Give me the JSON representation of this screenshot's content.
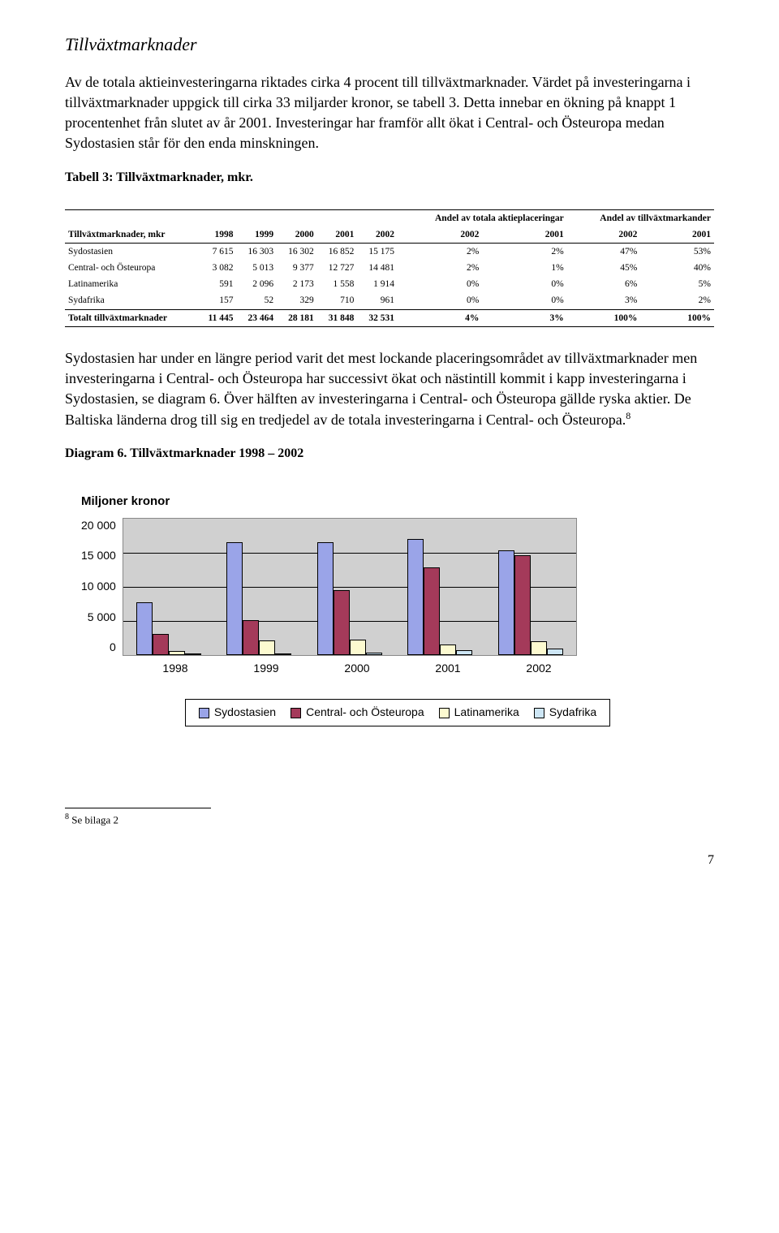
{
  "section_title": "Tillväxtmarknader",
  "para1": "Av de totala aktieinvesteringarna riktades cirka 4 procent till tillväxtmarknader. Värdet på investeringarna i tillväxtmarknader uppgick till cirka 33 miljarder kronor, se tabell 3. Detta innebar en ökning på knappt 1 procentenhet från slutet av år 2001. Investeringar har framför allt ökat i Central- och Östeuropa medan Sydostasien står för den enda minskningen.",
  "table_caption": "Tabell 3: Tillväxtmarknader, mkr.",
  "table": {
    "super_headers": [
      "Andel av totala aktieplaceringar",
      "Andel av tillväxtmarkander"
    ],
    "col_headers": [
      "Tillväxtmarknader, mkr",
      "1998",
      "1999",
      "2000",
      "2001",
      "2002",
      "2002",
      "2001",
      "2002",
      "2001"
    ],
    "rows": [
      [
        "Sydostasien",
        "7 615",
        "16 303",
        "16 302",
        "16 852",
        "15 175",
        "2%",
        "2%",
        "47%",
        "53%"
      ],
      [
        "Central- och Östeuropa",
        "3 082",
        "5 013",
        "9 377",
        "12 727",
        "14 481",
        "2%",
        "1%",
        "45%",
        "40%"
      ],
      [
        "Latinamerika",
        "591",
        "2 096",
        "2 173",
        "1 558",
        "1 914",
        "0%",
        "0%",
        "6%",
        "5%"
      ],
      [
        "Sydafrika",
        "157",
        "52",
        "329",
        "710",
        "961",
        "0%",
        "0%",
        "3%",
        "2%"
      ]
    ],
    "total_row": [
      "Totalt tillväxtmarknader",
      "11 445",
      "23 464",
      "28 181",
      "31 848",
      "32 531",
      "4%",
      "3%",
      "100%",
      "100%"
    ]
  },
  "para2_pre": "Sydostasien har under en längre period varit det mest lockande placeringsområdet av tillväxtmarknader men investeringarna i Central- och Östeuropa har successivt ökat och nästintill kommit i kapp investeringarna i Sydostasien, se diagram 6. Över hälften av investeringarna i Central- och Östeuropa gällde ryska aktier. De Baltiska länderna drog till sig en tredjedel av de totala investeringarna i Central- och Östeuropa.",
  "para2_ref": "8",
  "diagram_title": "Diagram 6. Tillväxtmarknader 1998 – 2002",
  "chart": {
    "type": "bar",
    "title": "Miljoner kronor",
    "categories": [
      "1998",
      "1999",
      "2000",
      "2001",
      "2002"
    ],
    "series": [
      {
        "name": "Sydostasien",
        "color": "#9aa4e8",
        "values": [
          7615,
          16303,
          16302,
          16852,
          15175
        ]
      },
      {
        "name": "Central- och Östeuropa",
        "color": "#a43a5a",
        "values": [
          3082,
          5013,
          9377,
          12727,
          14481
        ]
      },
      {
        "name": "Latinamerika",
        "color": "#fcfad0",
        "values": [
          591,
          2096,
          2173,
          1558,
          1914
        ]
      },
      {
        "name": "Sydafrika",
        "color": "#cde6f5",
        "values": [
          157,
          52,
          329,
          710,
          961
        ]
      }
    ],
    "y_ticks": [
      "20 000",
      "15 000",
      "10 000",
      "5 000",
      "0"
    ],
    "y_max": 20000,
    "plot_bg": "#d0d0d0",
    "grid_color": "#000000",
    "bar_border": "#000000",
    "legend_labels": [
      "Sydostasien",
      "Central- och Östeuropa",
      "Latinamerika",
      "Sydafrika"
    ]
  },
  "footnote_marker": "8",
  "footnote_text": " Se bilaga 2",
  "page_number": "7"
}
